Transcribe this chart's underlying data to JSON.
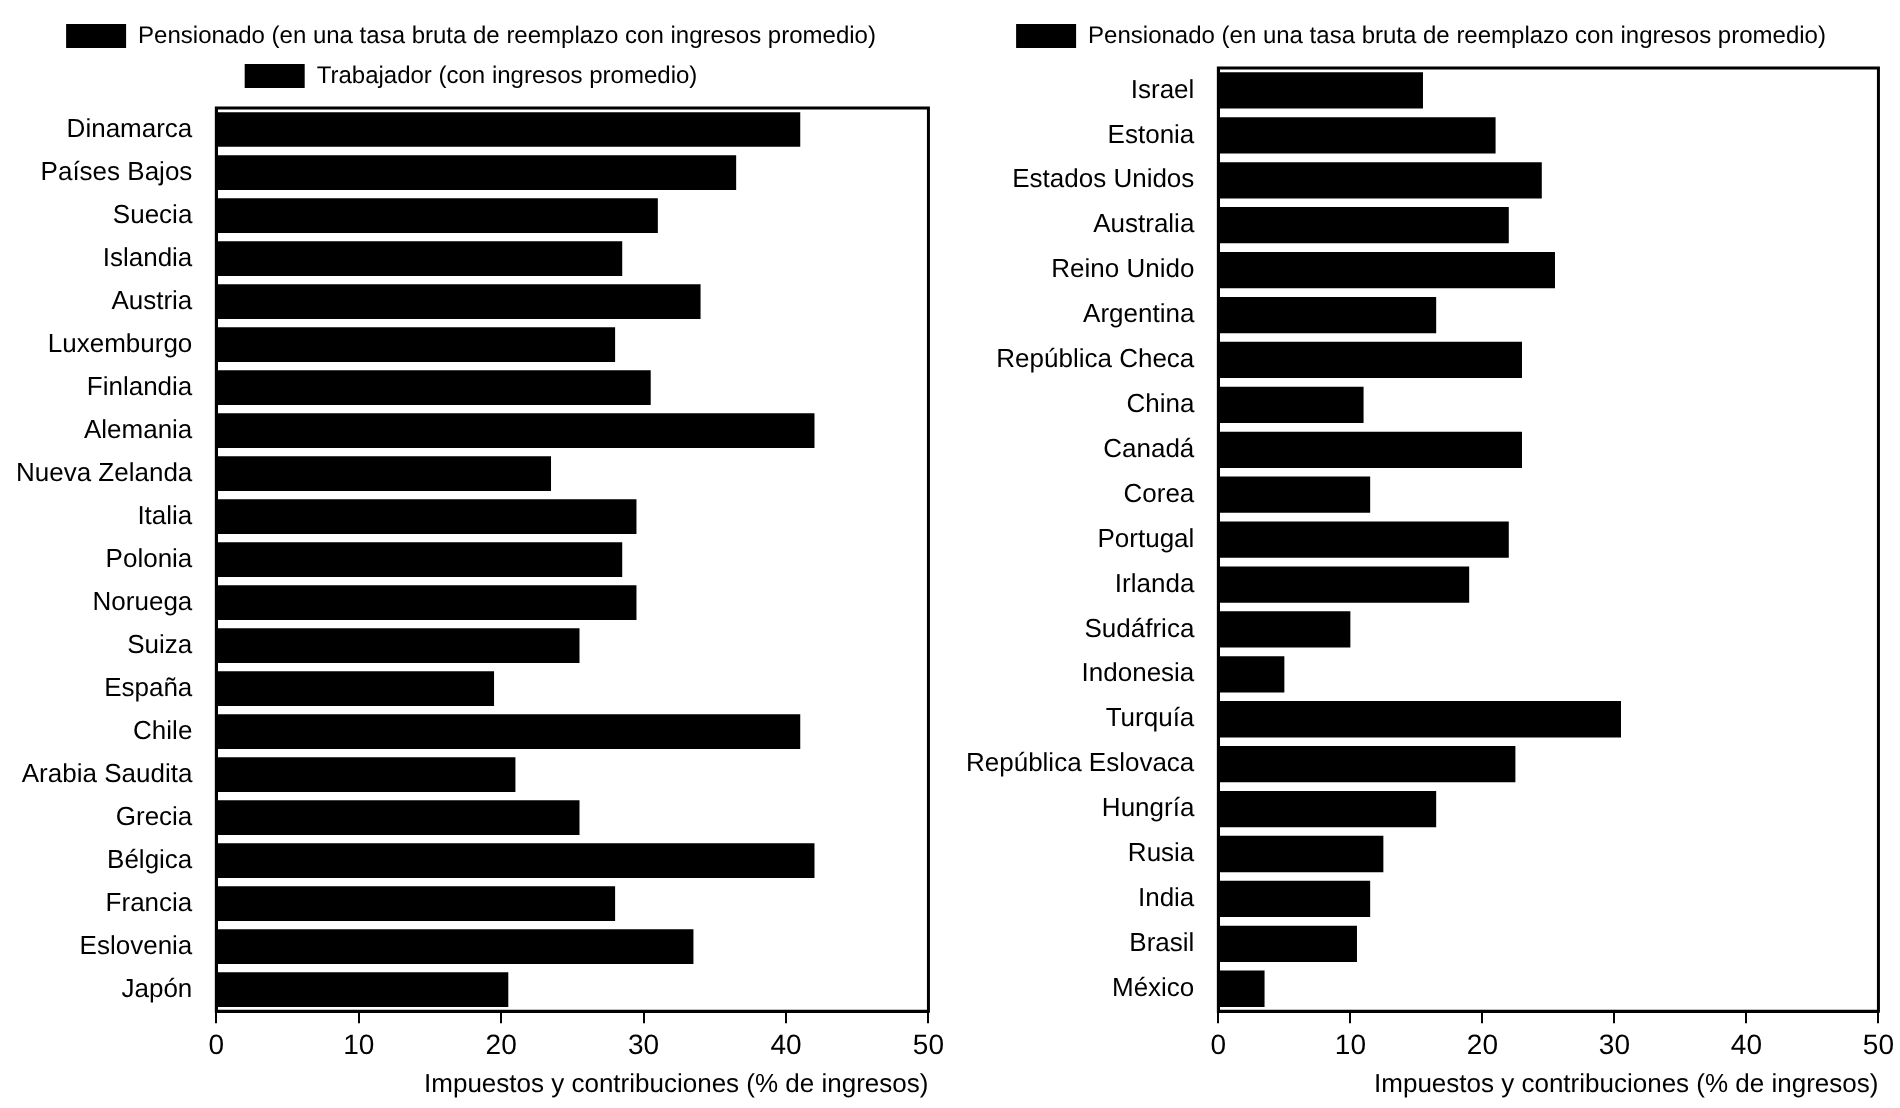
{
  "chart_data": [
    {
      "type": "bar",
      "orientation": "horizontal",
      "xlabel": "Impuestos y contribuciones (% de ingresos)",
      "categories": [
        "Dinamarca",
        "Países Bajos",
        "Suecia",
        "Islandia",
        "Austria",
        "Luxemburgo",
        "Finlandia",
        "Alemania",
        "Nueva Zelanda",
        "Italia",
        "Polonia",
        "Noruega",
        "Suiza",
        "España",
        "Chile",
        "Arabia Saudita",
        "Grecia",
        "Bélgica",
        "Francia",
        "Eslovenia",
        "Japón"
      ],
      "series": [
        {
          "name": "Pensionado (en una tasa bruta de reemplazo con ingresos promedio)",
          "color": "#000000",
          "values": [
            null,
            null,
            null,
            null,
            null,
            null,
            null,
            null,
            null,
            null,
            null,
            null,
            null,
            null,
            null,
            null,
            null,
            null,
            null,
            null,
            null
          ]
        },
        {
          "name": "Trabajador (con ingresos promedio)",
          "color": "#000000",
          "values": [
            41,
            36.5,
            31,
            28.5,
            34,
            28,
            30.5,
            42,
            23.5,
            29.5,
            28.5,
            29.5,
            25.5,
            19.5,
            41,
            21,
            25.5,
            42,
            28,
            33.5,
            20.5
          ]
        }
      ],
      "xlim": [
        0,
        50
      ],
      "xticks": [
        0,
        10,
        20,
        30,
        40,
        50
      ],
      "grid": false,
      "legend": "top"
    },
    {
      "type": "bar",
      "orientation": "horizontal",
      "xlabel": "Impuestos y contribuciones (% de ingresos)",
      "categories": [
        "Israel",
        "Estonia",
        "Estados Unidos",
        "Australia",
        "Reino Unido",
        "Argentina",
        "República Checa",
        "China",
        "Canadá",
        "Corea",
        "Portugal",
        "Irlanda",
        "Sudáfrica",
        "Indonesia",
        "Turquía",
        "República Eslovaca",
        "Hungría",
        "Rusia",
        "India",
        "Brasil",
        "México"
      ],
      "series": [
        {
          "name": "Pensionado (en una tasa bruta de reemplazo con ingresos promedio)",
          "color": "#000000",
          "values": [
            15.5,
            21,
            24.5,
            22,
            25.5,
            16.5,
            23,
            11,
            23,
            11.5,
            22,
            19,
            10,
            5,
            30.5,
            22.5,
            16.5,
            12.5,
            11.5,
            10.5,
            3.5
          ]
        }
      ],
      "xlim": [
        0,
        50
      ],
      "xticks": [
        0,
        10,
        20,
        30,
        40,
        50
      ],
      "grid": false,
      "legend": "top"
    }
  ]
}
